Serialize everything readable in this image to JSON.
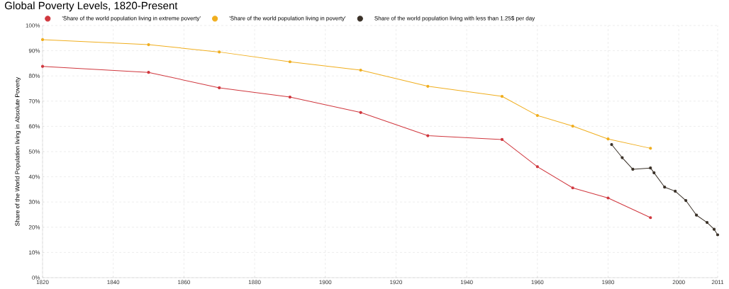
{
  "chart_data": {
    "type": "line",
    "title": "Global Poverty Levels, 1820-Present",
    "ylabel": "Share of the World Population living in Absolute Poverty",
    "xlim": [
      1820,
      2011
    ],
    "xticks": [
      1820,
      1840,
      1860,
      1880,
      1900,
      1920,
      1940,
      1960,
      1980,
      2000,
      2011
    ],
    "ylim": [
      0,
      100
    ],
    "yticks": [
      {
        "value": 0,
        "label": "0%"
      },
      {
        "value": 10,
        "label": "10%"
      },
      {
        "value": 20,
        "label": "20%"
      },
      {
        "value": 30,
        "label": "30%"
      },
      {
        "value": 40,
        "label": "40%"
      },
      {
        "value": 50,
        "label": "50%"
      },
      {
        "value": 60,
        "label": "60%"
      },
      {
        "value": 70,
        "label": "70%"
      },
      {
        "value": 80,
        "label": "80%"
      },
      {
        "value": 90,
        "label": "90%"
      },
      {
        "value": 100,
        "label": "100%"
      }
    ],
    "grid": true,
    "legend": "top left",
    "marker": "circle",
    "line_style": "solid",
    "series": [
      {
        "name": "'Share of the world population living in extreme poverty'",
        "color": "#d0373e",
        "x": [
          1820,
          1850,
          1870,
          1890,
          1910,
          1929,
          1950,
          1960,
          1970,
          1980,
          1992
        ],
        "values": [
          83.8,
          81.4,
          75.3,
          71.6,
          65.5,
          56.3,
          54.8,
          44.0,
          35.6,
          31.6,
          23.8
        ]
      },
      {
        "name": "'Share of the world population living in poverty'",
        "color": "#f0ae1e",
        "x": [
          1820,
          1850,
          1870,
          1890,
          1910,
          1929,
          1950,
          1960,
          1970,
          1980,
          1992
        ],
        "values": [
          94.4,
          92.4,
          89.5,
          85.6,
          82.3,
          75.9,
          71.9,
          64.3,
          60.1,
          55.0,
          51.3
        ]
      },
      {
        "name": "Share of the world population living with less than 1.25$ per day",
        "color": "#3a3128",
        "x": [
          1981,
          1984,
          1987,
          1992,
          1993,
          1996,
          1999,
          2002,
          2005,
          2008,
          2010,
          2011
        ],
        "values": [
          52.8,
          47.6,
          43.0,
          43.5,
          41.6,
          35.9,
          34.3,
          30.6,
          24.8,
          21.9,
          19.2,
          17.0
        ]
      }
    ]
  }
}
